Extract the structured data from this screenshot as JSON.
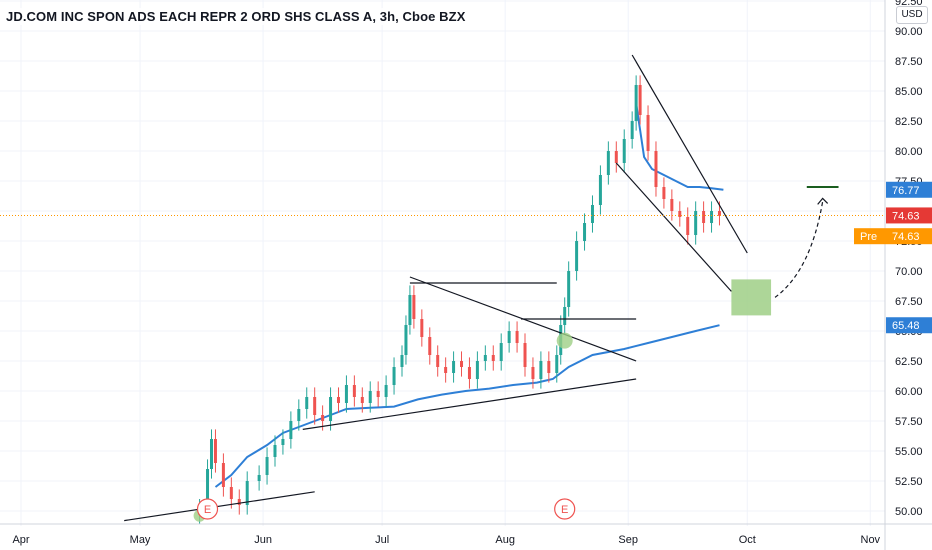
{
  "header": {
    "title": "JD.COM INC SPON ADS EACH REPR 2 ORD SHS CLASS A, 3h, Cboe BZX",
    "currency": "USD"
  },
  "chart_data": {
    "type": "line",
    "x_ticks": [
      "Apr",
      "May",
      "Jun",
      "Jul",
      "Aug",
      "Sep",
      "Oct",
      "Nov"
    ],
    "y_ticks": [
      "50.00",
      "52.50",
      "55.00",
      "57.50",
      "60.00",
      "62.50",
      "65.00",
      "67.50",
      "70.00",
      "72.50",
      "75.00",
      "77.50",
      "80.00",
      "82.50",
      "85.00",
      "87.50",
      "90.00",
      "92.50"
    ],
    "ylim": [
      49.5,
      93.0
    ],
    "price_labels": {
      "target": "76.77",
      "last": "74.63",
      "pre_tag": "Pre",
      "pre_value": "74.63",
      "ma": "65.48"
    },
    "earnings_marker": "E",
    "colors": {
      "up": "#26a69a",
      "down": "#ef5350",
      "ma": "#2e7fd6",
      "last": "#e53935",
      "pre": "#ff9800",
      "zone": "#9fcf86",
      "trendline": "#131722"
    },
    "price_series": [
      {
        "d": "05-16",
        "v": 50.2
      },
      {
        "d": "05-18",
        "v": 53.5
      },
      {
        "d": "05-19",
        "v": 56.0
      },
      {
        "d": "05-20",
        "v": 54.0
      },
      {
        "d": "05-22",
        "v": 52.0
      },
      {
        "d": "05-24",
        "v": 51.0
      },
      {
        "d": "05-26",
        "v": 50.5
      },
      {
        "d": "05-28",
        "v": 52.5
      },
      {
        "d": "05-31",
        "v": 53.0
      },
      {
        "d": "06-02",
        "v": 54.5
      },
      {
        "d": "06-04",
        "v": 55.5
      },
      {
        "d": "06-06",
        "v": 56.0
      },
      {
        "d": "06-08",
        "v": 57.5
      },
      {
        "d": "06-10",
        "v": 58.5
      },
      {
        "d": "06-12",
        "v": 59.5
      },
      {
        "d": "06-14",
        "v": 58.0
      },
      {
        "d": "06-16",
        "v": 57.5
      },
      {
        "d": "06-18",
        "v": 59.5
      },
      {
        "d": "06-20",
        "v": 59.0
      },
      {
        "d": "06-22",
        "v": 60.5
      },
      {
        "d": "06-24",
        "v": 59.5
      },
      {
        "d": "06-26",
        "v": 59.0
      },
      {
        "d": "06-28",
        "v": 60.0
      },
      {
        "d": "06-30",
        "v": 59.5
      },
      {
        "d": "07-02",
        "v": 60.5
      },
      {
        "d": "07-04",
        "v": 62.0
      },
      {
        "d": "07-06",
        "v": 63.0
      },
      {
        "d": "07-07",
        "v": 65.5
      },
      {
        "d": "07-08",
        "v": 68.0
      },
      {
        "d": "07-09",
        "v": 66.0
      },
      {
        "d": "07-11",
        "v": 64.5
      },
      {
        "d": "07-13",
        "v": 63.0
      },
      {
        "d": "07-15",
        "v": 62.0
      },
      {
        "d": "07-17",
        "v": 61.5
      },
      {
        "d": "07-19",
        "v": 62.5
      },
      {
        "d": "07-21",
        "v": 62.0
      },
      {
        "d": "07-23",
        "v": 61.0
      },
      {
        "d": "07-25",
        "v": 62.5
      },
      {
        "d": "07-27",
        "v": 63.0
      },
      {
        "d": "07-29",
        "v": 62.5
      },
      {
        "d": "07-31",
        "v": 64.0
      },
      {
        "d": "08-02",
        "v": 65.0
      },
      {
        "d": "08-04",
        "v": 64.0
      },
      {
        "d": "08-06",
        "v": 62.0
      },
      {
        "d": "08-08",
        "v": 61.0
      },
      {
        "d": "08-10",
        "v": 62.5
      },
      {
        "d": "08-12",
        "v": 61.5
      },
      {
        "d": "08-14",
        "v": 63.0
      },
      {
        "d": "08-15",
        "v": 65.5
      },
      {
        "d": "08-16",
        "v": 67.0
      },
      {
        "d": "08-17",
        "v": 70.0
      },
      {
        "d": "08-19",
        "v": 72.5
      },
      {
        "d": "08-21",
        "v": 74.0
      },
      {
        "d": "08-23",
        "v": 75.5
      },
      {
        "d": "08-25",
        "v": 78.0
      },
      {
        "d": "08-27",
        "v": 80.0
      },
      {
        "d": "08-29",
        "v": 79.0
      },
      {
        "d": "08-31",
        "v": 81.0
      },
      {
        "d": "09-02",
        "v": 82.5
      },
      {
        "d": "09-03",
        "v": 85.5
      },
      {
        "d": "09-04",
        "v": 83.0
      },
      {
        "d": "09-06",
        "v": 80.0
      },
      {
        "d": "09-08",
        "v": 77.0
      },
      {
        "d": "09-10",
        "v": 76.0
      },
      {
        "d": "09-12",
        "v": 75.0
      },
      {
        "d": "09-14",
        "v": 74.5
      },
      {
        "d": "09-16",
        "v": 73.0
      },
      {
        "d": "09-18",
        "v": 75.0
      },
      {
        "d": "09-20",
        "v": 74.0
      },
      {
        "d": "09-22",
        "v": 75.0
      },
      {
        "d": "09-24",
        "v": 74.6
      }
    ],
    "moving_average": [
      {
        "d": "05-20",
        "v": 52.0
      },
      {
        "d": "05-24",
        "v": 53.0
      },
      {
        "d": "05-28",
        "v": 54.5
      },
      {
        "d": "06-02",
        "v": 55.5
      },
      {
        "d": "06-06",
        "v": 56.5
      },
      {
        "d": "06-10",
        "v": 57.0
      },
      {
        "d": "06-14",
        "v": 57.5
      },
      {
        "d": "06-18",
        "v": 58.0
      },
      {
        "d": "06-22",
        "v": 58.5
      },
      {
        "d": "06-28",
        "v": 58.6
      },
      {
        "d": "07-04",
        "v": 58.7
      },
      {
        "d": "07-10",
        "v": 59.3
      },
      {
        "d": "07-16",
        "v": 59.7
      },
      {
        "d": "07-22",
        "v": 60.0
      },
      {
        "d": "07-28",
        "v": 60.2
      },
      {
        "d": "08-03",
        "v": 60.5
      },
      {
        "d": "08-09",
        "v": 60.7
      },
      {
        "d": "08-13",
        "v": 61.0
      },
      {
        "d": "08-17",
        "v": 62.0
      },
      {
        "d": "08-23",
        "v": 63.0
      },
      {
        "d": "08-31",
        "v": 63.5
      },
      {
        "d": "09-06",
        "v": 64.0
      },
      {
        "d": "09-12",
        "v": 64.5
      },
      {
        "d": "09-18",
        "v": 65.0
      },
      {
        "d": "09-24",
        "v": 65.48
      }
    ],
    "ma_tail": [
      {
        "d": "09-03",
        "v": 84.0
      },
      {
        "d": "09-05",
        "v": 79.5
      },
      {
        "d": "09-07",
        "v": 78.5
      },
      {
        "d": "09-10",
        "v": 78.0
      },
      {
        "d": "09-13",
        "v": 77.5
      },
      {
        "d": "09-16",
        "v": 77.0
      },
      {
        "d": "09-19",
        "v": 77.0
      },
      {
        "d": "09-22",
        "v": 76.9
      },
      {
        "d": "09-25",
        "v": 76.77
      }
    ],
    "trendlines": [
      {
        "from": {
          "d": "04-27",
          "v": 49.2
        },
        "to": {
          "d": "06-14",
          "v": 51.6
        }
      },
      {
        "from": {
          "d": "06-11",
          "v": 56.8
        },
        "to": {
          "d": "09-03",
          "v": 61.0
        }
      },
      {
        "from": {
          "d": "07-08",
          "v": 69.5
        },
        "to": {
          "d": "09-03",
          "v": 62.5
        }
      },
      {
        "from": {
          "d": "07-08",
          "v": 69.0
        },
        "to": {
          "d": "08-14",
          "v": 69.0
        }
      },
      {
        "from": {
          "d": "08-05",
          "v": 66.0
        },
        "to": {
          "d": "09-03",
          "v": 66.0
        }
      },
      {
        "from": {
          "d": "09-02",
          "v": 88.0
        },
        "to": {
          "d": "10-01",
          "v": 71.5
        }
      },
      {
        "from": {
          "d": "08-29",
          "v": 79.0
        },
        "to": {
          "d": "09-27",
          "v": 68.3
        }
      },
      {
        "from": {
          "d": "10-16",
          "v": 77.0
        },
        "to": {
          "d": "10-24",
          "v": 77.0
        }
      }
    ],
    "target_zone": {
      "from": {
        "d": "09-27",
        "v": 66.3
      },
      "to": {
        "d": "10-07",
        "v": 69.3
      }
    },
    "earnings_dates": [
      "05-18",
      "08-16"
    ]
  }
}
